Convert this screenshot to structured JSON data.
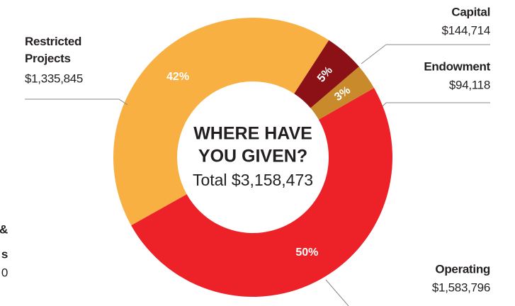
{
  "chart_data": {
    "type": "donut",
    "title_lines": [
      "WHERE HAVE",
      "YOU GIVEN?"
    ],
    "subtitle": "Total $3,158,473",
    "categories": [
      "Capital",
      "Endowment",
      "Operating",
      "Restricted Projects"
    ],
    "values": [
      144714,
      94118,
      1583796,
      1335845
    ],
    "value_labels": [
      "$144,714",
      "$94,118",
      "$1,583,796",
      "$1,335,845"
    ],
    "percent_labels": [
      "5%",
      "3%",
      "50%",
      "42%"
    ],
    "colors": [
      "#8c1117",
      "#c98a2c",
      "#ed2229",
      "#f9b042"
    ],
    "annotations": [
      "&",
      "s",
      "0"
    ]
  }
}
